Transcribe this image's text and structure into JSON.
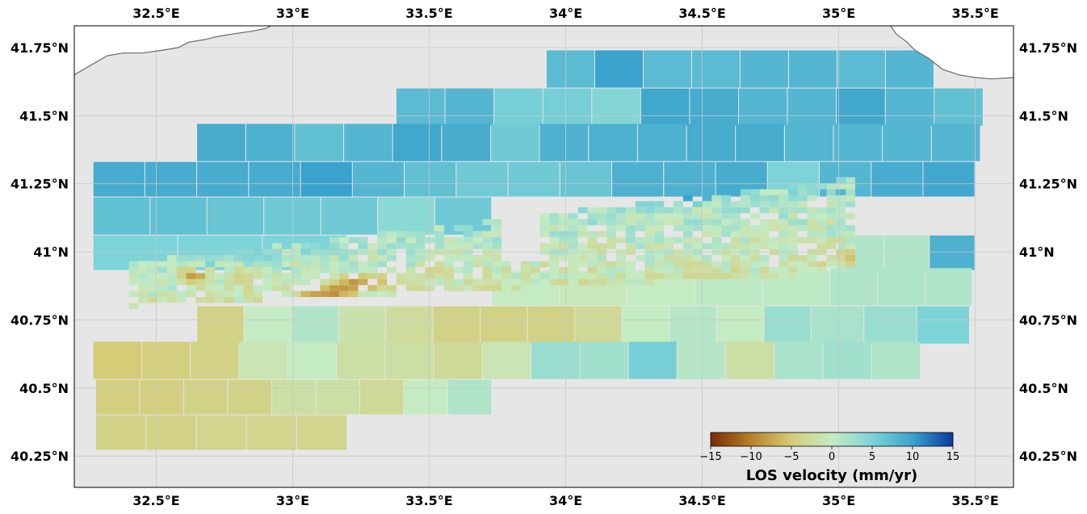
{
  "map": {
    "extent": {
      "lon_min": 32.2,
      "lon_max": 35.64,
      "lat_min": 40.135,
      "lat_max": 41.83
    },
    "lon_ticks": [
      {
        "value": 32.5,
        "label": "32.5°E"
      },
      {
        "value": 33.0,
        "label": "33°E"
      },
      {
        "value": 33.5,
        "label": "33.5°E"
      },
      {
        "value": 34.0,
        "label": "34°E"
      },
      {
        "value": 34.5,
        "label": "34.5°E"
      },
      {
        "value": 35.0,
        "label": "35°E"
      },
      {
        "value": 35.5,
        "label": "35.5°E"
      }
    ],
    "lat_ticks": [
      {
        "value": 41.75,
        "label": "41.75°N"
      },
      {
        "value": 41.5,
        "label": "41.5°N"
      },
      {
        "value": 41.25,
        "label": "41.25°N"
      },
      {
        "value": 41.0,
        "label": "41°N"
      },
      {
        "value": 40.75,
        "label": "40.75°N"
      },
      {
        "value": 40.5,
        "label": "40.5°N"
      },
      {
        "value": 40.25,
        "label": "40.25°N"
      }
    ],
    "colors": {
      "land": "#e6e6e6",
      "grid": "#c8c8c8",
      "coast": "#6a6a6a"
    },
    "coastline_west": [
      [
        32.2,
        41.65
      ],
      [
        32.32,
        41.72
      ],
      [
        32.38,
        41.73
      ],
      [
        32.45,
        41.73
      ],
      [
        32.52,
        41.74
      ],
      [
        32.58,
        41.75
      ],
      [
        32.62,
        41.77
      ],
      [
        32.68,
        41.78
      ],
      [
        32.72,
        41.79
      ],
      [
        32.78,
        41.8
      ],
      [
        32.85,
        41.81
      ],
      [
        32.9,
        41.82
      ],
      [
        32.92,
        41.83
      ]
    ],
    "coastline_east": [
      [
        35.19,
        41.83
      ],
      [
        35.21,
        41.8
      ],
      [
        35.25,
        41.77
      ],
      [
        35.28,
        41.74
      ],
      [
        35.33,
        41.71
      ],
      [
        35.38,
        41.67
      ],
      [
        35.44,
        41.65
      ],
      [
        35.5,
        41.64
      ],
      [
        35.56,
        41.635
      ],
      [
        35.64,
        41.64
      ]
    ]
  },
  "chart_data": {
    "type": "heatmap",
    "title": "",
    "variable": "LOS velocity",
    "units": "mm/yr",
    "colorbar": {
      "label": "LOS velocity (mm/yr)",
      "range": [
        -15,
        15
      ],
      "ticks": [
        -15,
        -10,
        -5,
        0,
        5,
        10,
        15
      ],
      "tick_labels": [
        "−15",
        "−10",
        "−5",
        "0",
        "5",
        "10",
        "15"
      ],
      "colormap": [
        {
          "value": -15,
          "color": "#7a2a05"
        },
        {
          "value": -10,
          "color": "#b7812a"
        },
        {
          "value": -5,
          "color": "#d6cc78"
        },
        {
          "value": 0,
          "color": "#c4ebc2"
        },
        {
          "value": 5,
          "color": "#7dd4d8"
        },
        {
          "value": 10,
          "color": "#3aa2cc"
        },
        {
          "value": 15,
          "color": "#083a9c"
        }
      ]
    },
    "tile_rows": [
      {
        "lat": [
          41.6,
          41.74
        ],
        "lon": [
          33.93,
          35.35
        ],
        "values": [
          7.5,
          10,
          7.5,
          7.5,
          8,
          8,
          7.5,
          8
        ]
      },
      {
        "lat": [
          41.46,
          41.6
        ],
        "lon": [
          33.38,
          35.53
        ],
        "values": [
          7.5,
          8,
          5.5,
          5.5,
          4.5,
          9.5,
          9,
          8,
          8,
          9.5,
          8,
          7
        ]
      },
      {
        "lat": [
          41.33,
          41.47
        ],
        "lon": [
          32.65,
          35.52
        ],
        "values": [
          9,
          8.5,
          7,
          8,
          9.5,
          9,
          6,
          8.5,
          8.5,
          8.5,
          9,
          9,
          8,
          8,
          8,
          8
        ]
      },
      {
        "lat": [
          41.2,
          41.33
        ],
        "lon": [
          32.27,
          35.5
        ],
        "values": [
          9,
          9,
          9,
          9,
          10,
          8,
          7,
          6,
          6,
          6.5,
          8.5,
          8.5,
          9,
          5,
          8,
          9,
          9.5
        ]
      },
      {
        "lat": [
          41.06,
          41.2
        ],
        "lon": [
          32.27,
          33.73
        ],
        "values": [
          7,
          7,
          6.5,
          6,
          6,
          4,
          6
        ]
      },
      {
        "lat": [
          40.93,
          41.06
        ],
        "lon": [
          32.27,
          33.2
        ],
        "values": [
          5,
          5,
          5
        ]
      },
      {
        "lat": [
          40.93,
          41.06
        ],
        "lon": [
          35.0,
          35.5
        ],
        "values": [
          1.5,
          1.5,
          8.5
        ]
      },
      {
        "lat": [
          40.8,
          40.94
        ],
        "lon": [
          34.97,
          35.49
        ],
        "values": [
          1.5,
          1.5,
          1.5
        ]
      },
      {
        "lat": [
          40.66,
          40.8
        ],
        "lon": [
          34.9,
          35.48
        ],
        "values": [
          2,
          3,
          5
        ]
      },
      {
        "lat": [
          40.8,
          40.93
        ],
        "lon": [
          33.73,
          34.97
        ],
        "values": [
          0,
          -0.5,
          0,
          0.5,
          0.5
        ]
      },
      {
        "lat": [
          40.66,
          40.8
        ],
        "lon": [
          32.65,
          34.9
        ],
        "values": [
          -4,
          0,
          1.5,
          -1.5,
          -2.5,
          -4,
          -4,
          -4,
          -3,
          0,
          1,
          0,
          3
        ]
      },
      {
        "lat": [
          40.53,
          40.67
        ],
        "lon": [
          32.27,
          35.3
        ],
        "values": [
          -5,
          -4.5,
          -4,
          -1,
          0,
          -2,
          -2,
          -3,
          -1,
          3,
          2.5,
          5.5,
          1,
          -2,
          2,
          2.5,
          1.5
        ]
      },
      {
        "lat": [
          40.4,
          40.53
        ],
        "lon": [
          32.28,
          33.73
        ],
        "values": [
          -4.5,
          -4.5,
          -4,
          -4,
          -2,
          -2,
          -3,
          0,
          1.5
        ]
      },
      {
        "lat": [
          40.27,
          40.4
        ],
        "lon": [
          32.28,
          33.2
        ],
        "values": [
          -4,
          -4,
          -3.5,
          -3.5,
          -3.5
        ]
      }
    ],
    "deformation_band": {
      "lat": [
        40.79,
        41.26
      ],
      "lon": [
        32.4,
        35.05
      ],
      "background_value": -1.5,
      "hotspots": [
        {
          "lon": 32.62,
          "lat": 40.9,
          "value": -9
        },
        {
          "lon": 32.8,
          "lat": 40.89,
          "value": -5
        },
        {
          "lon": 33.05,
          "lat": 40.83,
          "value": -8
        },
        {
          "lon": 33.13,
          "lat": 40.84,
          "value": -10
        },
        {
          "lon": 33.2,
          "lat": 40.87,
          "value": -10
        },
        {
          "lon": 33.28,
          "lat": 40.88,
          "value": -8
        },
        {
          "lon": 33.5,
          "lat": 40.92,
          "value": -4
        },
        {
          "lon": 34.1,
          "lat": 41.02,
          "value": -3
        },
        {
          "lon": 34.45,
          "lat": 41.2,
          "value": 14
        },
        {
          "lon": 35.03,
          "lat": 40.97,
          "value": -6
        },
        {
          "lon": 32.85,
          "lat": 40.98,
          "value": 6
        },
        {
          "lon": 33.4,
          "lat": 40.98,
          "value": 3
        },
        {
          "lon": 34.3,
          "lat": 41.17,
          "value": 5
        },
        {
          "lon": 34.6,
          "lat": 41.14,
          "value": 4
        }
      ]
    },
    "no_data_gap": {
      "lat": [
        40.96,
        41.2
      ],
      "lon": [
        33.73,
        33.9
      ]
    }
  }
}
